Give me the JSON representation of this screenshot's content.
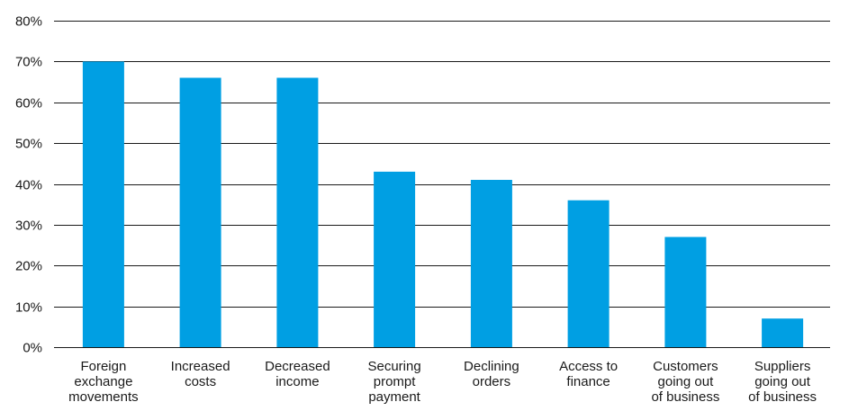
{
  "chart_data": {
    "type": "bar",
    "categories": [
      [
        "Foreign",
        "exchange",
        "movements"
      ],
      [
        "Increased",
        "costs"
      ],
      [
        "Decreased",
        "income"
      ],
      [
        "Securing",
        "prompt",
        "payment"
      ],
      [
        "Declining",
        "orders"
      ],
      [
        "Access to",
        "finance"
      ],
      [
        "Customers",
        "going out",
        "of business"
      ],
      [
        "Suppliers",
        "going out",
        "of business"
      ]
    ],
    "values": [
      70,
      66,
      66,
      43,
      41,
      36,
      27,
      7
    ],
    "ylim": [
      0,
      80
    ],
    "yticks": [
      0,
      10,
      20,
      30,
      40,
      50,
      60,
      70,
      80
    ],
    "ytick_labels": [
      "0%",
      "10%",
      "20%",
      "30%",
      "40%",
      "50%",
      "60%",
      "70%",
      "80%"
    ],
    "title": "",
    "xlabel": "",
    "ylabel": "",
    "grid": true,
    "legend": "none",
    "bar_color": "#009fe3",
    "grid_color": "#1a1a1a"
  }
}
